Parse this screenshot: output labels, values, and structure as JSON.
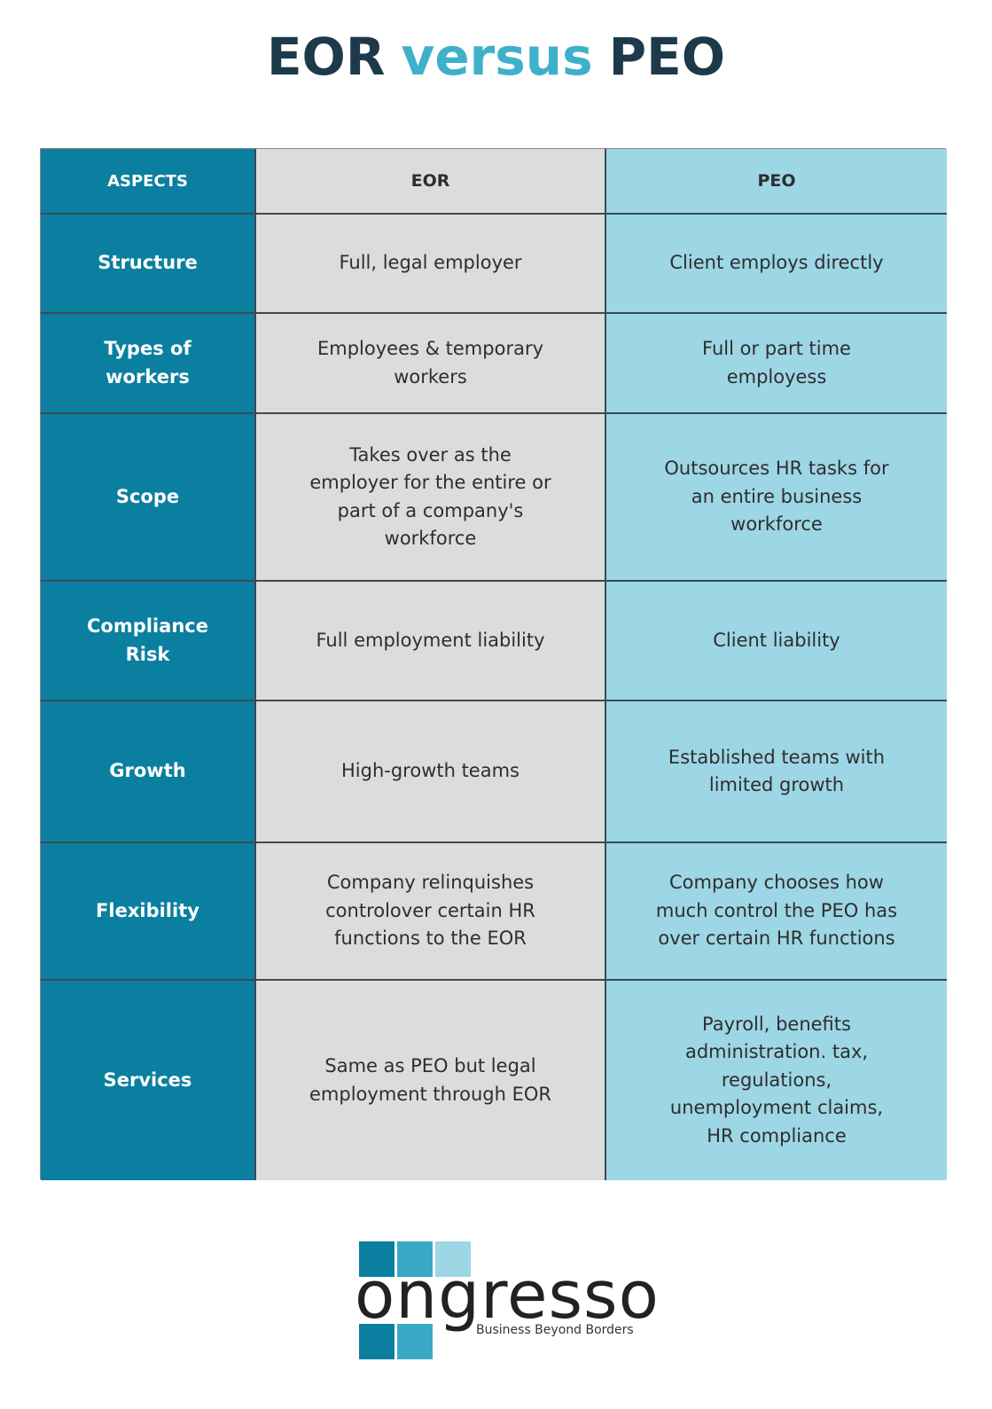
{
  "title": {
    "parts": [
      "EOR",
      "versus",
      "PEO"
    ]
  },
  "table": {
    "header": [
      "ASPECTS",
      "EOR",
      "PEO"
    ],
    "rows": [
      [
        "Structure",
        "Full, legal employer",
        "Client employs directly"
      ],
      [
        "Types of workers",
        "Employees & temporary workers",
        "Full or part time employess"
      ],
      [
        "Scope",
        "Takes over as the employer for the entire or part of a company's workforce",
        "Outsources HR tasks for an entire business workforce"
      ],
      [
        "Compliance Risk",
        "Full employment liability",
        "Client liability"
      ],
      [
        "Growth",
        "High-growth teams",
        "Established teams with limited growth"
      ],
      [
        "Flexibility",
        "Company relinquishes controlover certain HR functions to the EOR",
        "Company chooses how much control the PEO has over certain HR functions"
      ],
      [
        "Services",
        "Same as PEO but legal employment through EOR",
        "Payroll, benefits administration. tax, regulations, unemployment claims, HR compliance"
      ]
    ]
  },
  "logo": {
    "name": "ongresso",
    "tagline": "Business Beyond Borders"
  }
}
